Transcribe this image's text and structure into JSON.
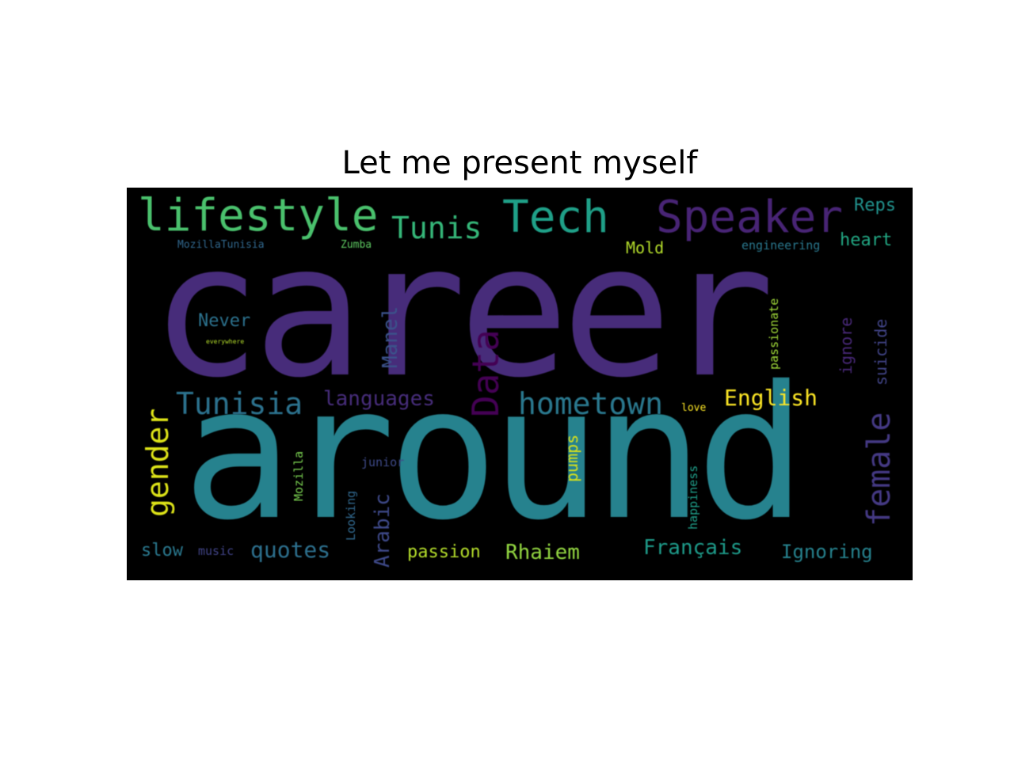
{
  "title": "Let me present myself",
  "words": [
    {
      "text": "career",
      "color": "#472c7a"
    },
    {
      "text": "around",
      "color": "#26828e"
    },
    {
      "text": "lifestyle",
      "color": "#4ac16d"
    },
    {
      "text": "Tunis",
      "color": "#35b779"
    },
    {
      "text": "Tech",
      "color": "#1fa088"
    },
    {
      "text": "Speaker",
      "color": "#482475"
    },
    {
      "text": "Reps",
      "color": "#21918c"
    },
    {
      "text": "heart",
      "color": "#22a884"
    },
    {
      "text": "engineering",
      "color": "#2a788e"
    },
    {
      "text": "Mold",
      "color": "#b5de2b"
    },
    {
      "text": "MozillaTunisia",
      "color": "#31688e"
    },
    {
      "text": "Zumba",
      "color": "#5ec962"
    },
    {
      "text": "Never",
      "color": "#2c728e"
    },
    {
      "text": "everywhere",
      "color": "#b5de2b"
    },
    {
      "text": "Manel",
      "color": "#3b528b"
    },
    {
      "text": "Data",
      "color": "#440154"
    },
    {
      "text": "passionate",
      "color": "#a0da39"
    },
    {
      "text": "ignore",
      "color": "#482878"
    },
    {
      "text": "suicide",
      "color": "#414487"
    },
    {
      "text": "gender",
      "color": "#dde318"
    },
    {
      "text": "Tunisia",
      "color": "#2c728e"
    },
    {
      "text": "languages",
      "color": "#472d7b"
    },
    {
      "text": "hometown",
      "color": "#2a788e"
    },
    {
      "text": "love",
      "color": "#fde725"
    },
    {
      "text": "English",
      "color": "#fde725"
    },
    {
      "text": "female",
      "color": "#443983"
    },
    {
      "text": "pumps",
      "color": "#dde318"
    },
    {
      "text": "junior",
      "color": "#3e4a89"
    },
    {
      "text": "Mozilla",
      "color": "#7ad151"
    },
    {
      "text": "Looking",
      "color": "#31688e"
    },
    {
      "text": "Arabic",
      "color": "#3e4989"
    },
    {
      "text": "happiness",
      "color": "#1f9e89"
    },
    {
      "text": "slow",
      "color": "#2a788e"
    },
    {
      "text": "music",
      "color": "#414487"
    },
    {
      "text": "quotes",
      "color": "#2d708e"
    },
    {
      "text": "passion",
      "color": "#b5de2b"
    },
    {
      "text": "Rhaiem",
      "color": "#93d741"
    },
    {
      "text": "Français",
      "color": "#1e9b8a"
    },
    {
      "text": "Ignoring",
      "color": "#26828e"
    }
  ]
}
